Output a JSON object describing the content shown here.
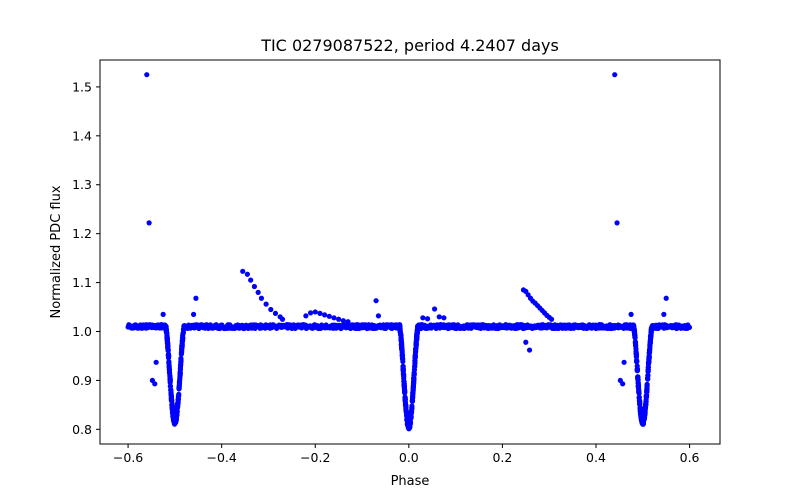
{
  "chart_data": {
    "type": "scatter",
    "title": "TIC 0279087522, period 4.2407 days",
    "xlabel": "Phase",
    "ylabel": "Normalized PDC flux",
    "xlim": [
      -0.66,
      0.665
    ],
    "ylim": [
      0.77,
      1.555
    ],
    "x_ticks": [
      {
        "value": -0.6,
        "label": "−0.6"
      },
      {
        "value": -0.4,
        "label": "−0.4"
      },
      {
        "value": -0.2,
        "label": "−0.2"
      },
      {
        "value": 0.0,
        "label": "0.0"
      },
      {
        "value": 0.2,
        "label": "0.2"
      },
      {
        "value": 0.4,
        "label": "0.4"
      },
      {
        "value": 0.6,
        "label": "0.6"
      }
    ],
    "y_ticks": [
      {
        "value": 0.8,
        "label": "0.8"
      },
      {
        "value": 0.9,
        "label": "0.9"
      },
      {
        "value": 1.0,
        "label": "1.0"
      },
      {
        "value": 1.1,
        "label": "1.1"
      },
      {
        "value": 1.2,
        "label": "1.2"
      },
      {
        "value": 1.3,
        "label": "1.3"
      },
      {
        "value": 1.4,
        "label": "1.4"
      },
      {
        "value": 1.5,
        "label": "1.5"
      }
    ],
    "marker_color": "#0000ff",
    "baseline_flux": 1.01,
    "phase_range": [
      -0.6,
      0.6
    ],
    "primary_eclipse": {
      "center": 0.0,
      "depth_min": 0.805,
      "half_width": 0.02
    },
    "secondary_eclipse": {
      "center": -0.5,
      "depth_min": 0.815,
      "half_width": 0.02
    },
    "secondary_eclipse_repeat": {
      "center": 0.5,
      "depth_min": 0.815,
      "half_width": 0.02
    },
    "outlier_points": [
      [
        -0.56,
        1.525
      ],
      [
        -0.555,
        1.222
      ],
      [
        -0.548,
        0.9
      ],
      [
        -0.543,
        0.893
      ],
      [
        -0.54,
        0.937
      ],
      [
        -0.525,
        1.035
      ],
      [
        -0.46,
        1.035
      ],
      [
        -0.455,
        1.068
      ],
      [
        -0.355,
        1.123
      ],
      [
        -0.345,
        1.117
      ],
      [
        -0.338,
        1.105
      ],
      [
        -0.33,
        1.092
      ],
      [
        -0.322,
        1.08
      ],
      [
        -0.315,
        1.068
      ],
      [
        -0.305,
        1.056
      ],
      [
        -0.295,
        1.045
      ],
      [
        -0.285,
        1.037
      ],
      [
        -0.275,
        1.03
      ],
      [
        -0.27,
        1.025
      ],
      [
        -0.22,
        1.032
      ],
      [
        -0.21,
        1.038
      ],
      [
        -0.2,
        1.04
      ],
      [
        -0.19,
        1.037
      ],
      [
        -0.18,
        1.034
      ],
      [
        -0.17,
        1.031
      ],
      [
        -0.16,
        1.028
      ],
      [
        -0.15,
        1.025
      ],
      [
        -0.14,
        1.022
      ],
      [
        -0.13,
        1.02
      ],
      [
        -0.07,
        1.063
      ],
      [
        -0.065,
        1.032
      ],
      [
        0.03,
        1.028
      ],
      [
        0.04,
        1.026
      ],
      [
        0.055,
        1.046
      ],
      [
        0.065,
        1.03
      ],
      [
        0.075,
        1.028
      ],
      [
        0.245,
        1.085
      ],
      [
        0.25,
        1.082
      ],
      [
        0.255,
        1.075
      ],
      [
        0.26,
        1.068
      ],
      [
        0.265,
        1.062
      ],
      [
        0.27,
        1.058
      ],
      [
        0.275,
        1.053
      ],
      [
        0.28,
        1.048
      ],
      [
        0.285,
        1.043
      ],
      [
        0.29,
        1.038
      ],
      [
        0.295,
        1.033
      ],
      [
        0.3,
        1.029
      ],
      [
        0.305,
        1.025
      ],
      [
        0.25,
        0.978
      ],
      [
        0.258,
        0.962
      ],
      [
        0.44,
        1.525
      ],
      [
        0.445,
        1.222
      ],
      [
        0.452,
        0.9
      ],
      [
        0.457,
        0.893
      ],
      [
        0.46,
        0.937
      ],
      [
        0.475,
        1.035
      ],
      [
        0.545,
        1.035
      ],
      [
        0.55,
        1.068
      ]
    ]
  }
}
